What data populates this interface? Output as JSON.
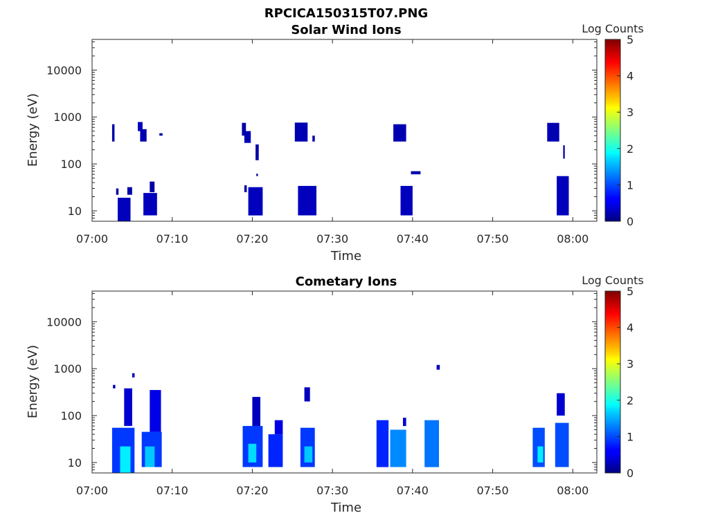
{
  "figure": {
    "title": "RPCICA150315T07.PNG"
  },
  "chart_data": [
    {
      "type": "heatmap",
      "title": "Solar Wind Ions",
      "xlabel": "Time",
      "ylabel": "Energy (eV)",
      "x_ticks": [
        "07:00",
        "07:10",
        "07:20",
        "07:30",
        "07:40",
        "07:50",
        "08:00"
      ],
      "y_ticks": [
        "10",
        "100",
        "1000",
        "10000"
      ],
      "y_scale": "log",
      "colorbar": {
        "label": "Log Counts",
        "ticks": [
          "0",
          "1",
          "2",
          "3",
          "4",
          "5"
        ],
        "range": [
          0,
          5
        ],
        "colormap": "jet"
      },
      "cells": [
        {
          "t0": 2.5,
          "t1": 2.8,
          "e0": 300,
          "e1": 700,
          "v": 0.2
        },
        {
          "t0": 5.7,
          "t1": 6.3,
          "e0": 500,
          "e1": 780,
          "v": 0.3
        },
        {
          "t0": 6.0,
          "t1": 6.8,
          "e0": 300,
          "e1": 550,
          "v": 0.25
        },
        {
          "t0": 8.4,
          "t1": 8.8,
          "e0": 400,
          "e1": 450,
          "v": 0.2
        },
        {
          "t0": 3.0,
          "t1": 3.3,
          "e0": 22,
          "e1": 30,
          "v": 0.2
        },
        {
          "t0": 3.2,
          "t1": 4.8,
          "e0": 6,
          "e1": 19,
          "v": 0.3
        },
        {
          "t0": 4.4,
          "t1": 5.0,
          "e0": 22,
          "e1": 32,
          "v": 0.2
        },
        {
          "t0": 6.4,
          "t1": 8.1,
          "e0": 8,
          "e1": 24,
          "v": 0.3
        },
        {
          "t0": 7.2,
          "t1": 7.8,
          "e0": 25,
          "e1": 42,
          "v": 0.2
        },
        {
          "t0": 18.7,
          "t1": 19.2,
          "e0": 400,
          "e1": 750,
          "v": 0.2
        },
        {
          "t0": 19.0,
          "t1": 19.8,
          "e0": 280,
          "e1": 500,
          "v": 0.25
        },
        {
          "t0": 20.4,
          "t1": 20.8,
          "e0": 120,
          "e1": 260,
          "v": 0.2
        },
        {
          "t0": 19.0,
          "t1": 19.3,
          "e0": 25,
          "e1": 35,
          "v": 0.2
        },
        {
          "t0": 19.5,
          "t1": 21.3,
          "e0": 8,
          "e1": 32,
          "v": 0.3
        },
        {
          "t0": 20.5,
          "t1": 20.7,
          "e0": 55,
          "e1": 62,
          "v": 0.2
        },
        {
          "t0": 25.3,
          "t1": 26.9,
          "e0": 300,
          "e1": 760,
          "v": 0.25
        },
        {
          "t0": 27.5,
          "t1": 27.8,
          "e0": 300,
          "e1": 400,
          "v": 0.2
        },
        {
          "t0": 25.7,
          "t1": 28.0,
          "e0": 8,
          "e1": 34,
          "v": 0.3
        },
        {
          "t0": 37.6,
          "t1": 39.2,
          "e0": 300,
          "e1": 700,
          "v": 0.25
        },
        {
          "t0": 38.5,
          "t1": 40.0,
          "e0": 8,
          "e1": 34,
          "v": 0.3
        },
        {
          "t0": 39.8,
          "t1": 41.0,
          "e0": 60,
          "e1": 70,
          "v": 0.2
        },
        {
          "t0": 56.8,
          "t1": 58.3,
          "e0": 300,
          "e1": 750,
          "v": 0.25
        },
        {
          "t0": 58.8,
          "t1": 59.0,
          "e0": 130,
          "e1": 250,
          "v": 0.2
        },
        {
          "t0": 58.0,
          "t1": 59.5,
          "e0": 8,
          "e1": 55,
          "v": 0.3
        }
      ]
    },
    {
      "type": "heatmap",
      "title": "Cometary Ions",
      "xlabel": "Time",
      "ylabel": "Energy (eV)",
      "x_ticks": [
        "07:00",
        "07:10",
        "07:20",
        "07:30",
        "07:40",
        "07:50",
        "08:00"
      ],
      "y_ticks": [
        "10",
        "100",
        "1000",
        "10000"
      ],
      "y_scale": "log",
      "colorbar": {
        "label": "Log Counts",
        "ticks": [
          "0",
          "1",
          "2",
          "3",
          "4",
          "5"
        ],
        "range": [
          0,
          5
        ],
        "colormap": "jet"
      },
      "cells": [
        {
          "t0": 2.5,
          "t1": 5.3,
          "e0": 6,
          "e1": 55,
          "v": 0.9
        },
        {
          "t0": 3.5,
          "t1": 4.8,
          "e0": 6,
          "e1": 22,
          "v": 1.8
        },
        {
          "t0": 4.0,
          "t1": 5.0,
          "e0": 60,
          "e1": 380,
          "v": 0.4
        },
        {
          "t0": 5.0,
          "t1": 5.3,
          "e0": 650,
          "e1": 800,
          "v": 0.3
        },
        {
          "t0": 2.6,
          "t1": 2.9,
          "e0": 380,
          "e1": 450,
          "v": 0.3
        },
        {
          "t0": 6.2,
          "t1": 8.7,
          "e0": 8,
          "e1": 45,
          "v": 0.9
        },
        {
          "t0": 6.6,
          "t1": 7.8,
          "e0": 8,
          "e1": 22,
          "v": 1.6
        },
        {
          "t0": 7.2,
          "t1": 8.6,
          "e0": 45,
          "e1": 350,
          "v": 0.5
        },
        {
          "t0": 18.8,
          "t1": 21.3,
          "e0": 8,
          "e1": 60,
          "v": 0.9
        },
        {
          "t0": 19.5,
          "t1": 20.5,
          "e0": 10,
          "e1": 25,
          "v": 1.7
        },
        {
          "t0": 20.0,
          "t1": 21.0,
          "e0": 60,
          "e1": 250,
          "v": 0.3
        },
        {
          "t0": 22.0,
          "t1": 23.8,
          "e0": 8,
          "e1": 40,
          "v": 0.8
        },
        {
          "t0": 22.8,
          "t1": 23.8,
          "e0": 40,
          "e1": 80,
          "v": 0.5
        },
        {
          "t0": 26.0,
          "t1": 27.8,
          "e0": 8,
          "e1": 55,
          "v": 0.9
        },
        {
          "t0": 26.5,
          "t1": 27.5,
          "e0": 10,
          "e1": 22,
          "v": 1.6
        },
        {
          "t0": 26.5,
          "t1": 27.2,
          "e0": 200,
          "e1": 400,
          "v": 0.3
        },
        {
          "t0": 35.5,
          "t1": 37.0,
          "e0": 8,
          "e1": 80,
          "v": 0.8
        },
        {
          "t0": 37.2,
          "t1": 39.2,
          "e0": 8,
          "e1": 50,
          "v": 1.3
        },
        {
          "t0": 38.8,
          "t1": 39.2,
          "e0": 60,
          "e1": 90,
          "v": 0.4
        },
        {
          "t0": 41.5,
          "t1": 43.3,
          "e0": 8,
          "e1": 80,
          "v": 1.2
        },
        {
          "t0": 43.0,
          "t1": 43.4,
          "e0": 950,
          "e1": 1200,
          "v": 0.3
        },
        {
          "t0": 55.0,
          "t1": 56.5,
          "e0": 8,
          "e1": 55,
          "v": 1.0
        },
        {
          "t0": 55.6,
          "t1": 56.3,
          "e0": 10,
          "e1": 22,
          "v": 1.8
        },
        {
          "t0": 57.8,
          "t1": 59.5,
          "e0": 8,
          "e1": 70,
          "v": 1.0
        },
        {
          "t0": 58.0,
          "t1": 59.0,
          "e0": 100,
          "e1": 300,
          "v": 0.4
        }
      ]
    }
  ]
}
